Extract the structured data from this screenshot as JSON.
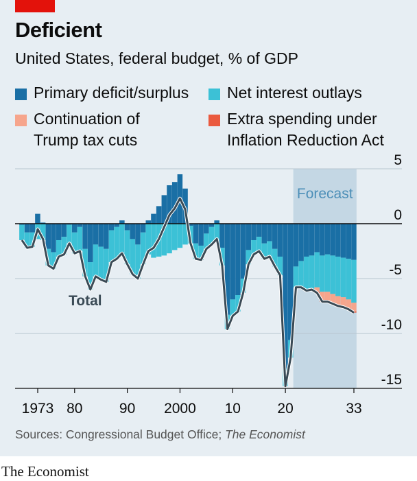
{
  "header": {
    "title": "Deficient",
    "subtitle": "United States, federal budget, % of GDP"
  },
  "legend": {
    "primary": "Primary deficit/surplus",
    "interest": "Net interest outlays",
    "trump_line1": "Continuation of",
    "trump_line2": "Trump tax cuts",
    "ira_line1": "Extra spending under",
    "ira_line2": "Inflation Reduction Act"
  },
  "colors": {
    "primary": "#1a6fa5",
    "interest": "#3cc1d6",
    "trump": "#f6a58c",
    "ira": "#ea5a3f",
    "total_line": "#3a4a55",
    "forecast_band": "#c4d7e4",
    "card_background": "#e7eef3",
    "red_tab": "#e3120b"
  },
  "footer": {
    "source_plain": "Sources: Congressional Budget Office; ",
    "source_italic": "The Economist",
    "brand": "The Economist"
  },
  "chart_data": {
    "type": "bar",
    "stacked": true,
    "ylim": [
      -15,
      5
    ],
    "yticks": [
      5,
      0,
      -5,
      -10,
      -15
    ],
    "y_tick_labels": [
      "5",
      "0",
      "-5",
      "-10",
      "-15"
    ],
    "x_range": [
      1970,
      2034
    ],
    "xticks": [
      1973,
      1980,
      1990,
      2000,
      2010,
      2020,
      2033
    ],
    "x_tick_labels": [
      "1973",
      "80",
      "90",
      "2000",
      "10",
      "20",
      "33"
    ],
    "forecast_label": "Forecast",
    "forecast_range": [
      2021.5,
      2033.5
    ],
    "total_label": "Total",
    "grid": true,
    "legend_position": "top",
    "x": [
      1970,
      1971,
      1972,
      1973,
      1974,
      1975,
      1976,
      1977,
      1978,
      1979,
      1980,
      1981,
      1982,
      1983,
      1984,
      1985,
      1986,
      1987,
      1988,
      1989,
      1990,
      1991,
      1992,
      1993,
      1994,
      1995,
      1996,
      1997,
      1998,
      1999,
      2000,
      2001,
      2002,
      2003,
      2004,
      2005,
      2006,
      2007,
      2008,
      2009,
      2010,
      2011,
      2012,
      2013,
      2014,
      2015,
      2016,
      2017,
      2018,
      2019,
      2020,
      2021,
      2022,
      2023,
      2024,
      2025,
      2026,
      2027,
      2028,
      2029,
      2030,
      2031,
      2032,
      2033
    ],
    "series": [
      {
        "name": "Primary deficit/surplus",
        "values": [
          -0.1,
          -0.8,
          -0.8,
          0.9,
          0.1,
          -2.3,
          -2.6,
          -1.5,
          -1.2,
          -0.1,
          -0.8,
          -0.3,
          -2.3,
          -3.5,
          -1.9,
          -2.1,
          -2.3,
          -0.6,
          -0.3,
          0.3,
          -0.6,
          -1.4,
          -1.9,
          -0.8,
          0.3,
          0.9,
          1.6,
          2.6,
          3.5,
          3.8,
          4.5,
          3.2,
          -0.2,
          -1.8,
          -2.0,
          -0.9,
          -0.3,
          0.3,
          -2.2,
          -8.3,
          -6.9,
          -6.5,
          -5.0,
          -2.4,
          -1.5,
          -1.2,
          -1.8,
          -1.6,
          -2.3,
          -3.0,
          -13.2,
          -10.6,
          -3.9,
          -3.4,
          -3.0,
          -2.9,
          -2.6,
          -2.9,
          -2.8,
          -2.9,
          -3.0,
          -3.1,
          -3.2,
          -3.3
        ]
      },
      {
        "name": "Net interest outlays",
        "values": [
          1.4,
          1.4,
          1.3,
          1.4,
          1.5,
          1.5,
          1.5,
          1.5,
          1.6,
          1.7,
          1.9,
          2.2,
          2.5,
          2.5,
          2.9,
          3.0,
          3.0,
          2.9,
          2.9,
          3.0,
          3.1,
          3.2,
          3.1,
          2.9,
          2.8,
          3.1,
          3.0,
          2.9,
          2.7,
          2.4,
          2.2,
          1.9,
          1.6,
          1.4,
          1.3,
          1.4,
          1.6,
          1.7,
          1.6,
          1.3,
          1.5,
          1.5,
          1.3,
          1.3,
          1.3,
          1.3,
          1.4,
          1.4,
          1.6,
          1.7,
          1.6,
          1.6,
          1.9,
          2.4,
          3.1,
          3.1,
          3.2,
          3.3,
          3.4,
          3.5,
          3.6,
          3.6,
          3.7,
          3.9
        ]
      },
      {
        "name": "Continuation of Trump tax cuts",
        "values": [
          0,
          0,
          0,
          0,
          0,
          0,
          0,
          0,
          0,
          0,
          0,
          0,
          0,
          0,
          0,
          0,
          0,
          0,
          0,
          0,
          0,
          0,
          0,
          0,
          0,
          0,
          0,
          0,
          0,
          0,
          0,
          0,
          0,
          0,
          0,
          0,
          0,
          0,
          0,
          0,
          0,
          0,
          0,
          0,
          0,
          0,
          0,
          0,
          0,
          0,
          0,
          0,
          0,
          0,
          0,
          0,
          0.4,
          0.8,
          0.8,
          0.8,
          0.8,
          0.8,
          0.8,
          0.8
        ]
      },
      {
        "name": "Extra spending under Inflation Reduction Act",
        "values": [
          0,
          0,
          0,
          0,
          0,
          0,
          0,
          0,
          0,
          0,
          0,
          0,
          0,
          0,
          0,
          0,
          0,
          0,
          0,
          0,
          0,
          0,
          0,
          0,
          0,
          0,
          0,
          0,
          0,
          0,
          0,
          0,
          0,
          0,
          0,
          0,
          0,
          0,
          0,
          0,
          0,
          0,
          0,
          0,
          0,
          0,
          0,
          0,
          0,
          0,
          0,
          0,
          0,
          0,
          0,
          0,
          0.1,
          0.1,
          0.1,
          0.1,
          0.1,
          0.1,
          0.1,
          0.1
        ]
      }
    ]
  }
}
